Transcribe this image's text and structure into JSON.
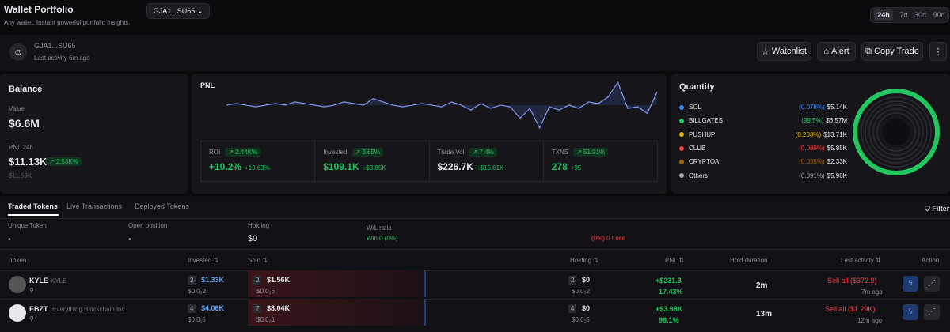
{
  "header": {
    "title": "Wallet Portfolio",
    "subtitle": "Any wallet. Instant powerful portfolio insights.",
    "wallet_button": "GJA1...SU65",
    "timeframes": [
      "24h",
      "7d",
      "30d",
      "90d"
    ]
  },
  "profile": {
    "address": "GJA1...SU65",
    "last_activity": "Last activity 6m ago",
    "actions": [
      "Watchlist",
      "Alert",
      "Copy Trade"
    ]
  },
  "balance": {
    "title": "Balance",
    "value_label": "Value",
    "value": "$6.6M",
    "pnl_label": "PNL 24h",
    "pnl": "$11.13K",
    "pnl_change": "2.53K%",
    "pnl_sub": "$11.59K"
  },
  "pnl": {
    "title": "PNL",
    "sparkline": [
      0,
      1,
      0,
      -1,
      0,
      1,
      0,
      2,
      1,
      0,
      -1,
      0,
      2,
      1,
      0,
      4,
      2,
      0,
      -1,
      0,
      1,
      0,
      -1,
      2,
      0,
      -3,
      1,
      -2,
      0,
      -1,
      -8,
      -2,
      -14,
      -1,
      -3,
      0,
      -2,
      2,
      1,
      5,
      14,
      -2,
      -1,
      -5,
      8
    ],
    "stats": [
      {
        "label": "ROI",
        "badge": "2.44K%",
        "value": "+10.2%",
        "sub": "+10.63%"
      },
      {
        "label": "Invested",
        "badge": "3.65%",
        "value": "$109.1K",
        "sub": "+$3.85K"
      },
      {
        "label": "Trade Vol",
        "badge": "7.4%",
        "value": "$226.7K",
        "sub": "+$15.61K"
      },
      {
        "label": "TXNS",
        "badge": "51.91%",
        "value": "278",
        "sub": "+95"
      }
    ]
  },
  "quantity": {
    "title": "Quantity",
    "items": [
      {
        "name": "SOL",
        "color": "#3b82f6",
        "pct": "(0.078%)",
        "value": "$5.14K"
      },
      {
        "name": "BILLGATES",
        "color": "#22c55e",
        "pct": "(99.5%)",
        "value": "$6.57M"
      },
      {
        "name": "PUSHUP",
        "color": "#eab308",
        "pct": "(0.208%)",
        "value": "$13.71K"
      },
      {
        "name": "CLUB",
        "color": "#ef4444",
        "pct": "(0.089%)",
        "value": "$5.85K"
      },
      {
        "name": "CRYPTOAI",
        "color": "#a16207",
        "pct": "(0.035%)",
        "value": "$2.33K"
      },
      {
        "name": "Others",
        "color": "#9ca3af",
        "pct": "(0.091%)",
        "value": "$5.98K"
      }
    ]
  },
  "tabs": [
    "Traded Tokens",
    "Live Transactions",
    "Deployed Tokens"
  ],
  "filter": "Filter",
  "summary": [
    {
      "label": "Unique Token",
      "value": "-"
    },
    {
      "label": "Open position",
      "value": "-"
    },
    {
      "label": "Holding",
      "value": "$0"
    }
  ],
  "winloss": {
    "label": "W/L ratio",
    "win": "Win 0 (0%)",
    "lose": "(0%) 0 Lose"
  },
  "table": {
    "columns": [
      "Token",
      "Invested",
      "Sold",
      "Holding",
      "PNL",
      "Hold duration",
      "Last activity",
      "Action"
    ],
    "rows": [
      {
        "symbol": "KYLE",
        "name": "KYLE",
        "invested_count": "2",
        "invested": "$1.33K",
        "invested_sub": "$0.0₂2",
        "sold_count": "2",
        "sold": "$1.56K",
        "sold_sub": "$0.0₂6",
        "holding_count": "2",
        "holding": "$0",
        "holding_sub": "$0.0₂2",
        "pnl": "+$231.3",
        "pnl_pct": "17.43%",
        "duration": "2m",
        "last": "Sell all ($372.9)",
        "last_time": "7m ago"
      },
      {
        "symbol": "EBZT",
        "name": "Everything Blockchain Inc",
        "invested_count": "4",
        "invested": "$4.06K",
        "invested_sub": "$0.0₁5",
        "sold_count": "7",
        "sold": "$8.04K",
        "sold_sub": "$0.0₃1",
        "holding_count": "4",
        "holding": "$0",
        "holding_sub": "$0.0₁5",
        "pnl": "+$3.98K",
        "pnl_pct": "98.1%",
        "duration": "13m",
        "last": "Sell all ($1.29K)",
        "last_time": "12m ago"
      }
    ]
  }
}
